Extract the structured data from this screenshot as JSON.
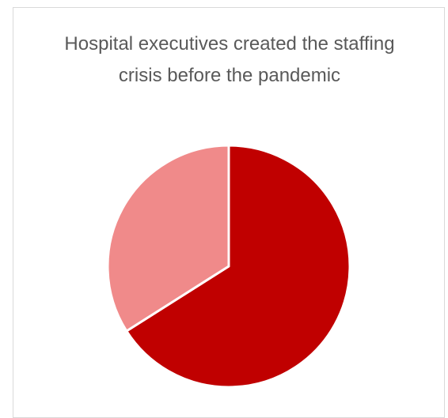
{
  "chart_data": {
    "type": "pie",
    "title": "Hospital executives created the staffing crisis before the pandemic",
    "legend": "none",
    "data_labels": "none",
    "slices": [
      {
        "value": 66,
        "color": "#c00000"
      },
      {
        "value": 34,
        "color": "#f08a8a"
      }
    ],
    "separator_color": "#ffffff"
  }
}
